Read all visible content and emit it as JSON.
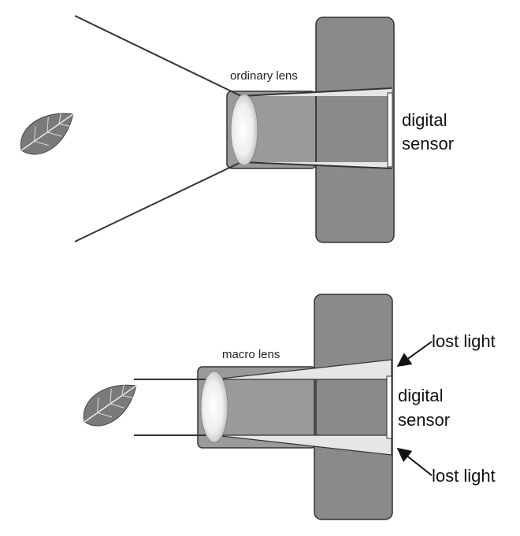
{
  "top": {
    "lens_label": "ordinary lens",
    "sensor_label_line1": "digital",
    "sensor_label_line2": "sensor"
  },
  "bottom": {
    "lens_label": "macro lens",
    "sensor_label_line1": "digital",
    "sensor_label_line2": "sensor",
    "lost_light_top": "lost light",
    "lost_light_bottom": "lost light"
  },
  "colors": {
    "camera_body": "#8a8a8a",
    "lens_barrel": "#9a9a9a",
    "outline": "#333333",
    "light_cone": "#e6e6e6",
    "leaf": "#7a7a7a"
  }
}
